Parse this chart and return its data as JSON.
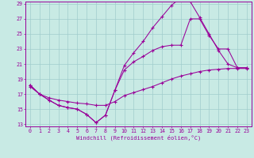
{
  "xlabel": "Windchill (Refroidissement éolien,°C)",
  "bg_color": "#c8eae4",
  "grid_color": "#a0cccc",
  "line_color": "#990099",
  "xlim_min": 0,
  "xlim_max": 23,
  "ylim_min": 13,
  "ylim_max": 29,
  "yticks": [
    13,
    15,
    17,
    19,
    21,
    23,
    25,
    27,
    29
  ],
  "xticks": [
    0,
    1,
    2,
    3,
    4,
    5,
    6,
    7,
    8,
    9,
    10,
    11,
    12,
    13,
    14,
    15,
    16,
    17,
    18,
    19,
    20,
    21,
    22,
    23
  ],
  "line1_x": [
    0,
    1,
    2,
    3,
    4,
    5,
    6,
    7,
    8,
    9,
    10,
    11,
    12,
    13,
    14,
    15,
    16,
    17,
    18,
    19,
    20,
    21,
    22,
    23
  ],
  "line1_y": [
    18.2,
    17.0,
    16.2,
    15.5,
    15.2,
    15.0,
    14.3,
    13.2,
    14.2,
    17.5,
    20.8,
    22.5,
    24.0,
    25.8,
    27.3,
    28.8,
    29.8,
    29.3,
    27.2,
    25.0,
    22.8,
    21.0,
    20.5,
    20.5
  ],
  "line2_x": [
    0,
    1,
    2,
    3,
    4,
    5,
    6,
    7,
    8,
    9,
    10,
    11,
    12,
    13,
    14,
    15,
    16,
    17,
    18,
    19,
    20,
    21,
    22,
    23
  ],
  "line2_y": [
    18.2,
    17.0,
    16.2,
    15.5,
    15.2,
    15.0,
    14.3,
    13.2,
    14.2,
    17.5,
    20.2,
    21.3,
    22.0,
    22.8,
    23.3,
    23.5,
    23.5,
    27.0,
    27.0,
    24.8,
    23.0,
    23.0,
    20.5,
    20.5
  ],
  "line3_x": [
    0,
    1,
    2,
    3,
    4,
    5,
    6,
    7,
    8,
    9,
    10,
    11,
    12,
    13,
    14,
    15,
    16,
    17,
    18,
    19,
    20,
    21,
    22,
    23
  ],
  "line3_y": [
    18.0,
    17.0,
    16.5,
    16.2,
    16.0,
    15.8,
    15.7,
    15.5,
    15.5,
    16.0,
    16.8,
    17.2,
    17.6,
    18.0,
    18.5,
    19.0,
    19.4,
    19.7,
    20.0,
    20.2,
    20.3,
    20.4,
    20.4,
    20.4
  ]
}
